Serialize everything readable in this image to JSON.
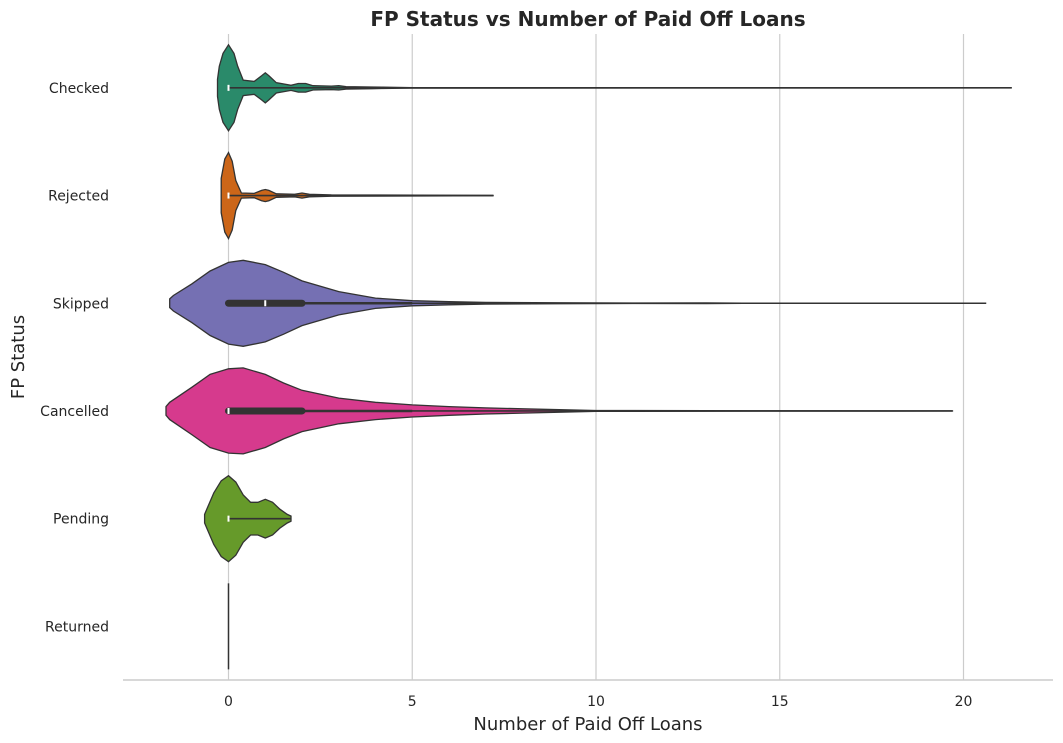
{
  "chart_data": {
    "type": "violin",
    "title": "FP Status vs Number of Paid Off Loans",
    "xlabel": "Number of Paid Off Loans",
    "ylabel": "FP Status",
    "xlim": [
      -2.9,
      22.5
    ],
    "xticks": [
      0,
      5,
      10,
      15,
      20
    ],
    "grid": "vertical",
    "orientation": "horizontal",
    "categories": [
      "Checked",
      "Rejected",
      "Skipped",
      "Cancelled",
      "Pending",
      "Returned"
    ],
    "series": [
      {
        "category": "Checked",
        "color": "#2a8a6a",
        "min": 0,
        "max": 21.3,
        "q1": 0,
        "median": 0,
        "q3": 0,
        "whisker_low": 0,
        "whisker_high": 0,
        "density": [
          [
            -0.3,
            0.2
          ],
          [
            -0.25,
            0.5
          ],
          [
            -0.15,
            0.8
          ],
          [
            0,
            1.0
          ],
          [
            0.15,
            0.8
          ],
          [
            0.25,
            0.5
          ],
          [
            0.4,
            0.18
          ],
          [
            0.7,
            0.15
          ],
          [
            0.9,
            0.28
          ],
          [
            1.0,
            0.35
          ],
          [
            1.1,
            0.28
          ],
          [
            1.3,
            0.12
          ],
          [
            1.7,
            0.06
          ],
          [
            1.9,
            0.1
          ],
          [
            2.1,
            0.1
          ],
          [
            2.3,
            0.05
          ],
          [
            2.8,
            0.04
          ],
          [
            3.0,
            0.05
          ],
          [
            3.2,
            0.03
          ],
          [
            3.9,
            0.02
          ],
          [
            4.2,
            0.015
          ],
          [
            5,
            0.005
          ],
          [
            21.3,
            0.002
          ]
        ]
      },
      {
        "category": "Rejected",
        "color": "#cc6619",
        "min": 0,
        "max": 7.2,
        "q1": 0,
        "median": 0,
        "q3": 0,
        "whisker_low": 0,
        "whisker_high": 0,
        "density": [
          [
            -0.2,
            0.4
          ],
          [
            -0.1,
            0.85
          ],
          [
            0,
            1.0
          ],
          [
            0.1,
            0.8
          ],
          [
            0.2,
            0.35
          ],
          [
            0.35,
            0.06
          ],
          [
            0.7,
            0.05
          ],
          [
            0.9,
            0.12
          ],
          [
            1.0,
            0.14
          ],
          [
            1.1,
            0.12
          ],
          [
            1.3,
            0.04
          ],
          [
            1.8,
            0.03
          ],
          [
            2.0,
            0.06
          ],
          [
            2.2,
            0.03
          ],
          [
            2.8,
            0.015
          ],
          [
            7.2,
            0.003
          ]
        ]
      },
      {
        "category": "Skipped",
        "color": "#7570b3",
        "min": 0,
        "max": 20.6,
        "q1": 0,
        "median": 1,
        "q3": 2,
        "whisker_low": 0,
        "whisker_high": 5,
        "density": [
          [
            -1.6,
            0.1
          ],
          [
            -1.5,
            0.18
          ],
          [
            -1,
            0.45
          ],
          [
            -0.5,
            0.75
          ],
          [
            0,
            0.95
          ],
          [
            0.4,
            1.0
          ],
          [
            1,
            0.9
          ],
          [
            1.5,
            0.72
          ],
          [
            2,
            0.52
          ],
          [
            3,
            0.27
          ],
          [
            4,
            0.12
          ],
          [
            5,
            0.06
          ],
          [
            6,
            0.035
          ],
          [
            7,
            0.02
          ],
          [
            9,
            0.01
          ],
          [
            11,
            0.006
          ],
          [
            13,
            0.007
          ],
          [
            14,
            0.004
          ],
          [
            17,
            0.002
          ],
          [
            20.6,
            0.001
          ]
        ]
      },
      {
        "category": "Cancelled",
        "color": "#d63a8d",
        "min": 0,
        "max": 19.7,
        "q1": 0,
        "median": 0,
        "q3": 2,
        "whisker_low": 0,
        "whisker_high": 5,
        "density": [
          [
            -1.7,
            0.1
          ],
          [
            -1.6,
            0.2
          ],
          [
            -1,
            0.55
          ],
          [
            -0.5,
            0.85
          ],
          [
            0,
            0.98
          ],
          [
            0.4,
            1.0
          ],
          [
            1,
            0.85
          ],
          [
            1.5,
            0.65
          ],
          [
            2,
            0.48
          ],
          [
            3,
            0.3
          ],
          [
            4,
            0.2
          ],
          [
            5,
            0.14
          ],
          [
            6,
            0.1
          ],
          [
            7,
            0.07
          ],
          [
            8,
            0.05
          ],
          [
            9,
            0.03
          ],
          [
            10,
            0.01
          ],
          [
            13,
            0.006
          ],
          [
            16,
            0.004
          ],
          [
            19.7,
            0.002
          ]
        ]
      },
      {
        "category": "Pending",
        "color": "#669a2a",
        "min": 0,
        "max": 1.7,
        "q1": 0,
        "median": 0,
        "q3": 0,
        "whisker_low": 0,
        "whisker_high": 0,
        "density": [
          [
            -0.65,
            0.1
          ],
          [
            -0.6,
            0.2
          ],
          [
            -0.4,
            0.6
          ],
          [
            -0.2,
            0.88
          ],
          [
            0,
            1.0
          ],
          [
            0.2,
            0.85
          ],
          [
            0.4,
            0.55
          ],
          [
            0.6,
            0.38
          ],
          [
            0.8,
            0.38
          ],
          [
            1.0,
            0.45
          ],
          [
            1.2,
            0.38
          ],
          [
            1.4,
            0.22
          ],
          [
            1.6,
            0.1
          ],
          [
            1.7,
            0.06
          ]
        ]
      },
      {
        "category": "Returned",
        "color": "#555555",
        "min": 0,
        "max": 0,
        "q1": 0,
        "median": 0,
        "q3": 0,
        "whisker_low": 0,
        "whisker_high": 0,
        "density": []
      }
    ]
  }
}
